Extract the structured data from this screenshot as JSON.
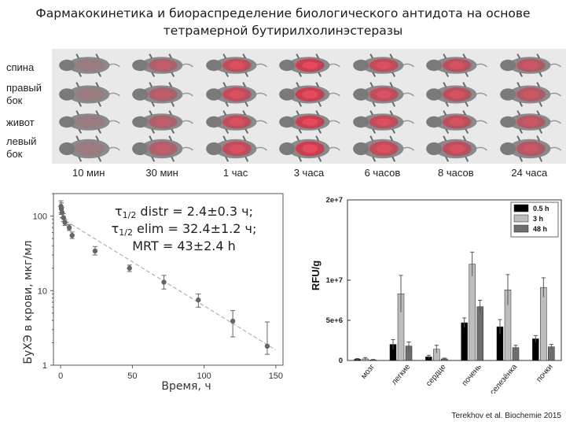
{
  "title": {
    "line1": "Фармакокинетика и биораспределение биологического антидота на основе",
    "line2": "тетрамерной бутирилхолинэстеразы"
  },
  "imaging": {
    "row_labels": [
      {
        "line1": "спина",
        "line2": ""
      },
      {
        "line1": "правый",
        "line2": "бок"
      },
      {
        "line1": "живот",
        "line2": ""
      },
      {
        "line1": "левый",
        "line2": "бок"
      }
    ],
    "time_labels": [
      "10 мин",
      "30 мин",
      "1 час",
      "3 часа",
      "6 часов",
      "8 часов",
      "24 часа"
    ],
    "signal_intensity": [
      0.15,
      0.45,
      0.7,
      0.85,
      0.7,
      0.65,
      0.55
    ],
    "colors": {
      "background": "#e9e9e9",
      "signal": "#e2233c",
      "mouse": "#8a8a8a"
    }
  },
  "chart_data": [
    {
      "type": "scatter",
      "name": "blood-pharmacokinetics",
      "xlabel": "Время, ч",
      "ylabel": "БуХЭ в крови, мкг/мл",
      "yscale": "log",
      "xlim": [
        -5,
        155
      ],
      "ylim": [
        1,
        200
      ],
      "xticks": [
        "0",
        "50",
        "100",
        "150"
      ],
      "xtick_values": [
        0,
        50,
        100,
        150
      ],
      "yticks": [
        "1",
        "10",
        "100"
      ],
      "ytick_values": [
        1,
        10,
        100
      ],
      "annotations": {
        "line1_sym": "τ",
        "line1_sub": "1/2",
        "line1_text": " distr = 2.4±0.3 ч;",
        "line2_sym": "τ",
        "line2_sub": "1/2",
        "line2_text": " elim = 32.4±1.2 ч;",
        "line3_text": "MRT = 43±2.4 h"
      },
      "points": [
        {
          "x": 0.25,
          "y": 135,
          "err_lo": 110,
          "err_hi": 160
        },
        {
          "x": 0.5,
          "y": 125,
          "err_lo": 105,
          "err_hi": 150
        },
        {
          "x": 1,
          "y": 112,
          "err_lo": 95,
          "err_hi": 130
        },
        {
          "x": 2,
          "y": 95,
          "err_lo": 85,
          "err_hi": 108
        },
        {
          "x": 3,
          "y": 82,
          "err_lo": 75,
          "err_hi": 90
        },
        {
          "x": 6,
          "y": 70,
          "err_lo": 64,
          "err_hi": 77
        },
        {
          "x": 8,
          "y": 55,
          "err_lo": 50,
          "err_hi": 61
        },
        {
          "x": 24,
          "y": 34,
          "err_lo": 30,
          "err_hi": 39
        },
        {
          "x": 48,
          "y": 20,
          "err_lo": 18,
          "err_hi": 22
        },
        {
          "x": 72,
          "y": 13,
          "err_lo": 10.5,
          "err_hi": 16
        },
        {
          "x": 96,
          "y": 7.5,
          "err_lo": 6,
          "err_hi": 9
        },
        {
          "x": 120,
          "y": 3.9,
          "err_lo": 2.4,
          "err_hi": 5.4
        },
        {
          "x": 144,
          "y": 1.8,
          "err_lo": 1.4,
          "err_hi": 3.8
        }
      ],
      "fit": {
        "x": [
          0,
          150
        ],
        "y": [
          95,
          1.6
        ]
      },
      "colors": {
        "point": "#666666",
        "fit": "#b0b0b0",
        "axis": "#555555"
      }
    },
    {
      "type": "bar",
      "name": "biodistribution",
      "ylabel": "RFU/g",
      "categories": [
        "мозг",
        "легкие",
        "сердце",
        "почень",
        "селезёнка",
        "почки"
      ],
      "ylim": [
        0,
        20000000
      ],
      "yticks": [
        "0",
        "5e+6",
        "1e+7",
        "2e+7"
      ],
      "ytick_values": [
        0,
        5000000,
        10000000,
        20000000
      ],
      "legend": {
        "position": "top-right"
      },
      "series": [
        {
          "name": "0.5 h",
          "color": "#000000",
          "values": [
            150000,
            2000000,
            450000,
            4700000,
            4200000,
            2700000
          ],
          "errors": [
            100000,
            600000,
            200000,
            600000,
            900000,
            400000
          ]
        },
        {
          "name": "3 h",
          "color": "#bdbdbd",
          "values": [
            200000,
            8300000,
            1400000,
            12000000,
            8800000,
            9100000
          ],
          "errors": [
            150000,
            2300000,
            500000,
            1500000,
            1900000,
            1200000
          ]
        },
        {
          "name": "48 h",
          "color": "#6e6e6e",
          "values": [
            80000,
            1800000,
            200000,
            6700000,
            1600000,
            1700000
          ],
          "errors": [
            50000,
            500000,
            100000,
            800000,
            300000,
            300000
          ]
        }
      ]
    }
  ],
  "citation": "Terekhov et al. Biochemie 2015"
}
